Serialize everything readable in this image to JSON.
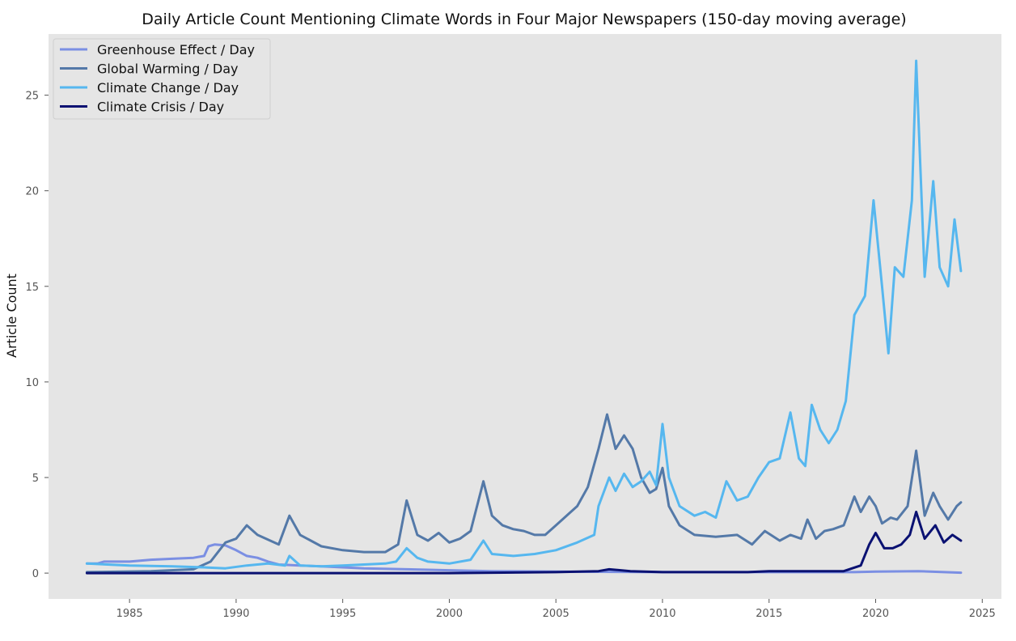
{
  "chart_data": {
    "type": "line",
    "title": "Daily Article Count Mentioning Climate Words in Four Major Newspapers (150-day moving average)",
    "xlabel": "",
    "ylabel": "Article Count",
    "xlim": [
      1981.2,
      2025.9
    ],
    "ylim": [
      -1.35,
      28.2
    ],
    "x_ticks": [
      1985,
      1990,
      1995,
      2000,
      2005,
      2010,
      2015,
      2020,
      2025
    ],
    "y_ticks": [
      0,
      5,
      10,
      15,
      20,
      25
    ],
    "grid": false,
    "background": "#e5e5e5",
    "legend_position": "top-left",
    "series": [
      {
        "name": "Greenhouse Effect / Day",
        "color": "#7b8fe3",
        "points": [
          [
            1983.0,
            0.5
          ],
          [
            1983.5,
            0.5
          ],
          [
            1983.8,
            0.6
          ],
          [
            1985.0,
            0.6
          ],
          [
            1986.0,
            0.7
          ],
          [
            1987.0,
            0.75
          ],
          [
            1988.0,
            0.8
          ],
          [
            1988.5,
            0.9
          ],
          [
            1988.7,
            1.4
          ],
          [
            1989.0,
            1.5
          ],
          [
            1989.5,
            1.45
          ],
          [
            1990.0,
            1.2
          ],
          [
            1990.5,
            0.9
          ],
          [
            1991.0,
            0.8
          ],
          [
            1991.5,
            0.6
          ],
          [
            1992.0,
            0.45
          ],
          [
            1993.0,
            0.4
          ],
          [
            1994.0,
            0.35
          ],
          [
            1995.0,
            0.3
          ],
          [
            1996.0,
            0.25
          ],
          [
            1998.0,
            0.2
          ],
          [
            2000.0,
            0.15
          ],
          [
            2002.0,
            0.1
          ],
          [
            2005.0,
            0.08
          ],
          [
            2010.0,
            0.05
          ],
          [
            2015.0,
            0.05
          ],
          [
            2019.0,
            0.05
          ],
          [
            2020.0,
            0.08
          ],
          [
            2022.0,
            0.1
          ],
          [
            2024.0,
            0.02
          ]
        ]
      },
      {
        "name": "Global Warming / Day",
        "color": "#5479a8",
        "points": [
          [
            1983.0,
            0.05
          ],
          [
            1986.0,
            0.1
          ],
          [
            1988.0,
            0.2
          ],
          [
            1988.8,
            0.6
          ],
          [
            1989.5,
            1.6
          ],
          [
            1990.0,
            1.8
          ],
          [
            1990.5,
            2.5
          ],
          [
            1991.0,
            2.0
          ],
          [
            1992.0,
            1.5
          ],
          [
            1992.5,
            3.0
          ],
          [
            1993.0,
            2.0
          ],
          [
            1994.0,
            1.4
          ],
          [
            1995.0,
            1.2
          ],
          [
            1996.0,
            1.1
          ],
          [
            1997.0,
            1.1
          ],
          [
            1997.6,
            1.5
          ],
          [
            1998.0,
            3.8
          ],
          [
            1998.5,
            2.0
          ],
          [
            1999.0,
            1.7
          ],
          [
            1999.5,
            2.1
          ],
          [
            2000.0,
            1.6
          ],
          [
            2000.5,
            1.8
          ],
          [
            2001.0,
            2.2
          ],
          [
            2001.6,
            4.8
          ],
          [
            2002.0,
            3.0
          ],
          [
            2002.5,
            2.5
          ],
          [
            2003.0,
            2.3
          ],
          [
            2003.5,
            2.2
          ],
          [
            2004.0,
            2.0
          ],
          [
            2004.5,
            2.0
          ],
          [
            2005.0,
            2.5
          ],
          [
            2005.5,
            3.0
          ],
          [
            2006.0,
            3.5
          ],
          [
            2006.5,
            4.5
          ],
          [
            2007.0,
            6.5
          ],
          [
            2007.4,
            8.3
          ],
          [
            2007.8,
            6.5
          ],
          [
            2008.2,
            7.2
          ],
          [
            2008.6,
            6.5
          ],
          [
            2009.0,
            5.0
          ],
          [
            2009.4,
            4.2
          ],
          [
            2009.7,
            4.4
          ],
          [
            2010.0,
            5.5
          ],
          [
            2010.3,
            3.5
          ],
          [
            2010.8,
            2.5
          ],
          [
            2011.5,
            2.0
          ],
          [
            2012.5,
            1.9
          ],
          [
            2013.5,
            2.0
          ],
          [
            2014.2,
            1.5
          ],
          [
            2014.8,
            2.2
          ],
          [
            2015.5,
            1.7
          ],
          [
            2016.0,
            2.0
          ],
          [
            2016.5,
            1.8
          ],
          [
            2016.8,
            2.8
          ],
          [
            2017.2,
            1.8
          ],
          [
            2017.6,
            2.2
          ],
          [
            2018.0,
            2.3
          ],
          [
            2018.5,
            2.5
          ],
          [
            2019.0,
            4.0
          ],
          [
            2019.3,
            3.2
          ],
          [
            2019.7,
            4.0
          ],
          [
            2020.0,
            3.5
          ],
          [
            2020.3,
            2.6
          ],
          [
            2020.7,
            2.9
          ],
          [
            2021.0,
            2.8
          ],
          [
            2021.5,
            3.5
          ],
          [
            2021.9,
            6.4
          ],
          [
            2022.3,
            3.0
          ],
          [
            2022.7,
            4.2
          ],
          [
            2023.0,
            3.5
          ],
          [
            2023.4,
            2.8
          ],
          [
            2023.8,
            3.5
          ],
          [
            2024.0,
            3.7
          ]
        ]
      },
      {
        "name": "Climate Change / Day",
        "color": "#56b7ef",
        "points": [
          [
            1983.0,
            0.5
          ],
          [
            1985.0,
            0.4
          ],
          [
            1987.0,
            0.35
          ],
          [
            1988.5,
            0.3
          ],
          [
            1989.5,
            0.25
          ],
          [
            1990.5,
            0.4
          ],
          [
            1991.5,
            0.5
          ],
          [
            1992.3,
            0.4
          ],
          [
            1992.5,
            0.9
          ],
          [
            1993.0,
            0.4
          ],
          [
            1994.0,
            0.35
          ],
          [
            1995.0,
            0.4
          ],
          [
            1996.0,
            0.45
          ],
          [
            1997.0,
            0.5
          ],
          [
            1997.5,
            0.6
          ],
          [
            1998.0,
            1.3
          ],
          [
            1998.5,
            0.8
          ],
          [
            1999.0,
            0.6
          ],
          [
            2000.0,
            0.5
          ],
          [
            2001.0,
            0.7
          ],
          [
            2001.6,
            1.7
          ],
          [
            2002.0,
            1.0
          ],
          [
            2003.0,
            0.9
          ],
          [
            2004.0,
            1.0
          ],
          [
            2005.0,
            1.2
          ],
          [
            2006.0,
            1.6
          ],
          [
            2006.8,
            2.0
          ],
          [
            2007.0,
            3.5
          ],
          [
            2007.5,
            5.0
          ],
          [
            2007.8,
            4.3
          ],
          [
            2008.2,
            5.2
          ],
          [
            2008.6,
            4.5
          ],
          [
            2009.0,
            4.8
          ],
          [
            2009.4,
            5.3
          ],
          [
            2009.7,
            4.6
          ],
          [
            2010.0,
            7.8
          ],
          [
            2010.3,
            5.0
          ],
          [
            2010.8,
            3.5
          ],
          [
            2011.5,
            3.0
          ],
          [
            2012.0,
            3.2
          ],
          [
            2012.5,
            2.9
          ],
          [
            2013.0,
            4.8
          ],
          [
            2013.5,
            3.8
          ],
          [
            2014.0,
            4.0
          ],
          [
            2014.5,
            5.0
          ],
          [
            2015.0,
            5.8
          ],
          [
            2015.5,
            6.0
          ],
          [
            2016.0,
            8.4
          ],
          [
            2016.4,
            6.0
          ],
          [
            2016.7,
            5.6
          ],
          [
            2017.0,
            8.8
          ],
          [
            2017.4,
            7.5
          ],
          [
            2017.8,
            6.8
          ],
          [
            2018.2,
            7.5
          ],
          [
            2018.6,
            9.0
          ],
          [
            2019.0,
            13.5
          ],
          [
            2019.5,
            14.5
          ],
          [
            2019.9,
            19.5
          ],
          [
            2020.3,
            15.0
          ],
          [
            2020.6,
            11.5
          ],
          [
            2020.9,
            16.0
          ],
          [
            2021.3,
            15.5
          ],
          [
            2021.7,
            19.5
          ],
          [
            2021.9,
            26.8
          ],
          [
            2022.3,
            15.5
          ],
          [
            2022.7,
            20.5
          ],
          [
            2023.0,
            16.0
          ],
          [
            2023.4,
            15.0
          ],
          [
            2023.7,
            18.5
          ],
          [
            2024.0,
            15.8
          ]
        ]
      },
      {
        "name": "Climate Crisis / Day",
        "color": "#0a1172",
        "points": [
          [
            1983.0,
            0.0
          ],
          [
            2000.0,
            0.0
          ],
          [
            2005.0,
            0.05
          ],
          [
            2007.0,
            0.1
          ],
          [
            2007.5,
            0.2
          ],
          [
            2008.5,
            0.1
          ],
          [
            2010.0,
            0.05
          ],
          [
            2014.0,
            0.05
          ],
          [
            2015.0,
            0.1
          ],
          [
            2017.0,
            0.1
          ],
          [
            2018.5,
            0.1
          ],
          [
            2019.3,
            0.4
          ],
          [
            2019.7,
            1.5
          ],
          [
            2020.0,
            2.1
          ],
          [
            2020.4,
            1.3
          ],
          [
            2020.8,
            1.3
          ],
          [
            2021.2,
            1.5
          ],
          [
            2021.6,
            2.0
          ],
          [
            2021.9,
            3.2
          ],
          [
            2022.3,
            1.8
          ],
          [
            2022.8,
            2.5
          ],
          [
            2023.2,
            1.6
          ],
          [
            2023.6,
            2.0
          ],
          [
            2024.0,
            1.7
          ]
        ]
      }
    ]
  }
}
